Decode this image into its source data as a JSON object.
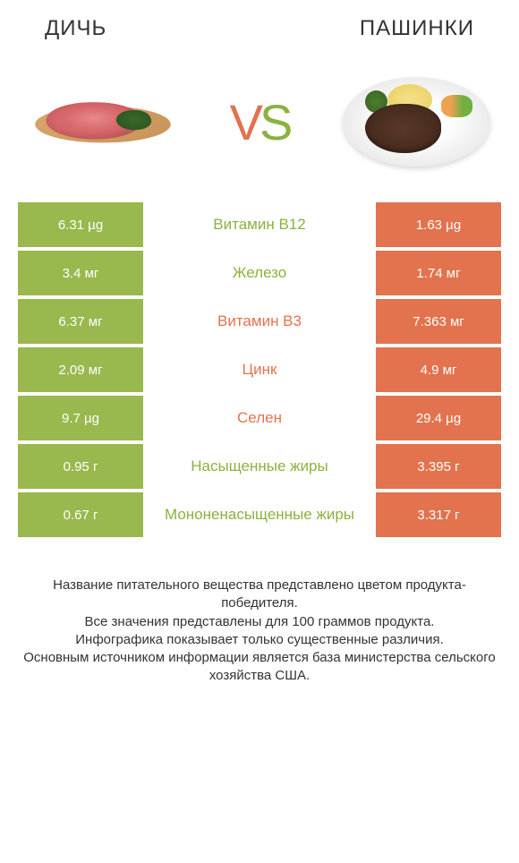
{
  "header": {
    "left_title": "ДИЧЬ",
    "right_title": "ПАШИНКИ"
  },
  "vs": {
    "v": "V",
    "s": "S"
  },
  "colors": {
    "green": "#99b84e",
    "orange": "#e2734e",
    "green_text": "#8bb23e",
    "orange_text": "#e2734e"
  },
  "rows": [
    {
      "left": "6.31 µg",
      "label": "Витамин B12",
      "right": "1.63 µg",
      "winner": "green"
    },
    {
      "left": "3.4 мг",
      "label": "Железо",
      "right": "1.74 мг",
      "winner": "green"
    },
    {
      "left": "6.37 мг",
      "label": "Витамин B3",
      "right": "7.363 мг",
      "winner": "orange"
    },
    {
      "left": "2.09 мг",
      "label": "Цинк",
      "right": "4.9 мг",
      "winner": "orange"
    },
    {
      "left": "9.7 µg",
      "label": "Селен",
      "right": "29.4 µg",
      "winner": "orange"
    },
    {
      "left": "0.95 г",
      "label": "Насыщенные жиры",
      "right": "3.395 г",
      "winner": "green"
    },
    {
      "left": "0.67 г",
      "label": "Мононенасыщенные жиры",
      "right": "3.317 г",
      "winner": "green"
    }
  ],
  "footer": {
    "line1": "Название питательного вещества представлено цветом продукта-победителя.",
    "line2": "Все значения представлены для 100 граммов продукта.",
    "line3": "Инфографика показывает только существенные различия.",
    "line4": "Основным источником информации является база министерства сельского хозяйства США."
  }
}
